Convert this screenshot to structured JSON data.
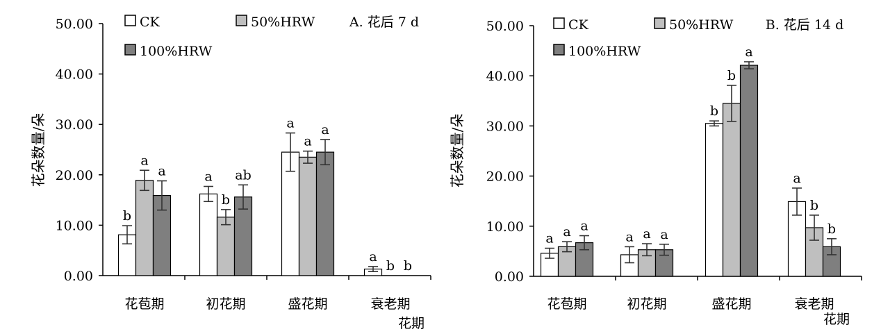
{
  "chart_data": [
    {
      "type": "bar",
      "title": "A. 花后 7 d",
      "ylabel": "花朵数量/朵",
      "xlabel": "花期",
      "ylim": [
        0,
        50
      ],
      "yticks": [
        "0.00",
        "10.00",
        "20.00",
        "30.00",
        "40.00",
        "50.00"
      ],
      "categories": [
        "花苞期",
        "初花期",
        "盛花期",
        "衰老期"
      ],
      "legend_placement": "top-left",
      "series": [
        {
          "name": "CK",
          "color": "#ffffff",
          "values": [
            8.1,
            16.2,
            24.5,
            1.3
          ],
          "errors": [
            1.8,
            1.5,
            3.8,
            0.5
          ],
          "letters": [
            "b",
            "a",
            "a",
            "a"
          ]
        },
        {
          "name": "50%HRW",
          "color": "#bfbfbf",
          "values": [
            18.9,
            11.6,
            23.5,
            0.0
          ],
          "errors": [
            2.0,
            1.5,
            1.2,
            0.0
          ],
          "letters": [
            "a",
            "b",
            "a",
            "b"
          ]
        },
        {
          "name": "100%HRW",
          "color": "#7f7f7f",
          "values": [
            15.9,
            15.6,
            24.5,
            0.0
          ],
          "errors": [
            2.9,
            2.4,
            2.5,
            0.0
          ],
          "letters": [
            "a",
            "ab",
            "a",
            "b"
          ]
        }
      ]
    },
    {
      "type": "bar",
      "title": "B. 花后 14 d",
      "ylabel": "花朵数量/朵",
      "xlabel": "花期",
      "ylim": [
        0,
        50
      ],
      "yticks": [
        "0.00",
        "10.00",
        "20.00",
        "30.00",
        "40.00",
        "50.00"
      ],
      "categories": [
        "花苞期",
        "初花期",
        "盛花期",
        "衰老期"
      ],
      "legend_placement": "top-left",
      "series": [
        {
          "name": "CK",
          "color": "#ffffff",
          "values": [
            4.6,
            4.3,
            30.5,
            14.9
          ],
          "errors": [
            1.0,
            1.6,
            0.5,
            2.7
          ],
          "letters": [
            "a",
            "a",
            "b",
            "a"
          ]
        },
        {
          "name": "50%HRW",
          "color": "#bfbfbf",
          "values": [
            5.9,
            5.3,
            34.5,
            9.7
          ],
          "errors": [
            1.0,
            1.2,
            3.6,
            2.5
          ],
          "letters": [
            "a",
            "a",
            "b",
            "b"
          ]
        },
        {
          "name": "100%HRW",
          "color": "#7f7f7f",
          "values": [
            6.7,
            5.3,
            42.1,
            5.9
          ],
          "errors": [
            1.4,
            1.1,
            0.7,
            1.6
          ],
          "letters": [
            "a",
            "a",
            "a",
            "b"
          ]
        }
      ]
    }
  ]
}
